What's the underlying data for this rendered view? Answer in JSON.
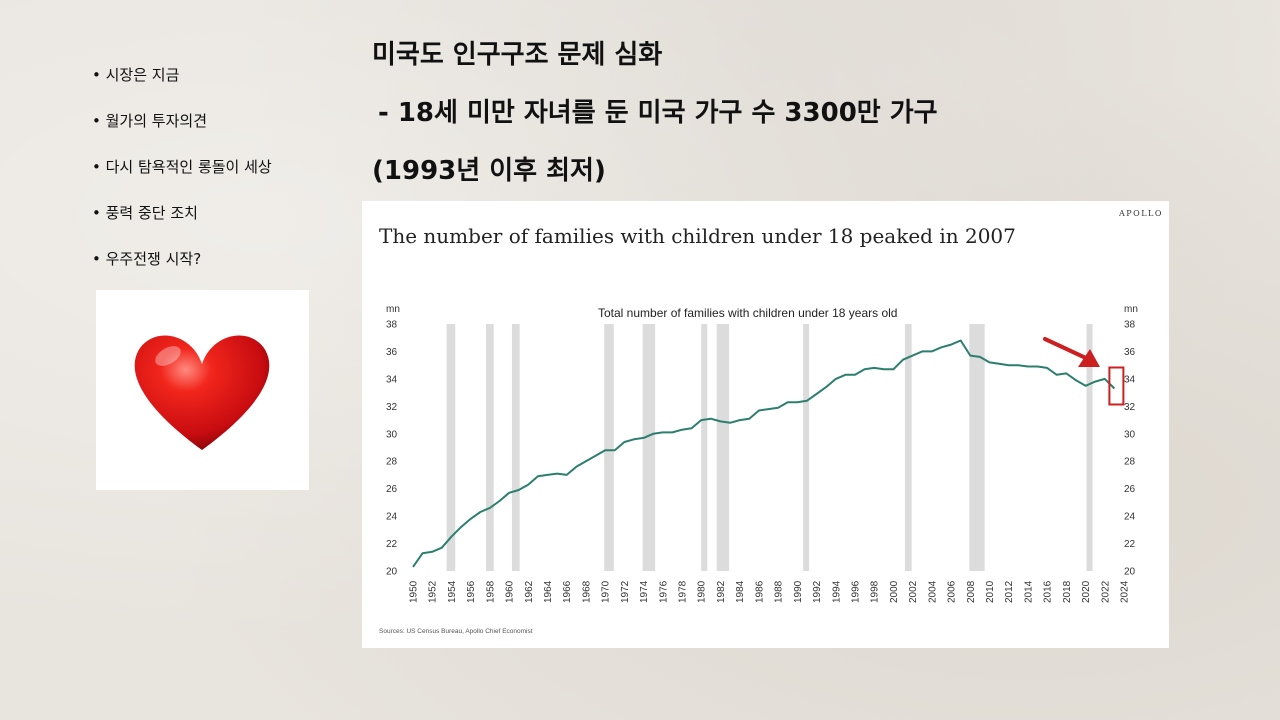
{
  "bullets": [
    "시장은 지금",
    "월가의 투자의견",
    "다시 탐욕적인 롱돌이 세상",
    "풍력 중단 조치",
    "우주전쟁 시작?"
  ],
  "headline": {
    "line1": "미국도 인구구조 문제 심화",
    "line2": "- 18세 미만 자녀를 둔 미국 가구 수 3300만 가구",
    "line3": "(1993년 이후 최저)"
  },
  "colors": {
    "line": "#2c7f6e",
    "recession": "#dcdcdc",
    "arrow": "#cc1f1f",
    "heart": "#e3101a"
  },
  "heart_icon": "heart-icon",
  "chart_data": {
    "type": "line",
    "title": "The number of  families with children under 18 peaked in 2007",
    "brand": "APOLLO",
    "subtitle": "Total number of families with children under 18 years old",
    "ylabel_left": "mn",
    "ylabel_right": "mn",
    "source": "Sources: US Census Bureau, Apollo Chief Economist",
    "ylim": [
      20,
      38
    ],
    "yticks": [
      20,
      22,
      24,
      26,
      28,
      30,
      32,
      34,
      36,
      38
    ],
    "xlim": [
      1950,
      2024
    ],
    "xticks": [
      1950,
      1952,
      1954,
      1956,
      1958,
      1960,
      1962,
      1964,
      1966,
      1968,
      1970,
      1972,
      1974,
      1976,
      1978,
      1980,
      1982,
      1984,
      1986,
      1988,
      1990,
      1992,
      1994,
      1996,
      1998,
      2000,
      2002,
      2004,
      2006,
      2008,
      2010,
      2012,
      2014,
      2016,
      2018,
      2020,
      2022,
      2024
    ],
    "recessions": [
      [
        1953.5,
        1954.4
      ],
      [
        1957.6,
        1958.4
      ],
      [
        1960.3,
        1961.1
      ],
      [
        1969.9,
        1970.9
      ],
      [
        1973.9,
        1975.2
      ],
      [
        1980.0,
        1980.6
      ],
      [
        1981.6,
        1982.9
      ],
      [
        1990.6,
        1991.2
      ],
      [
        2001.2,
        2001.9
      ],
      [
        2007.9,
        2009.5
      ],
      [
        2020.1,
        2020.5
      ]
    ],
    "series": [
      {
        "x": [
          1950,
          1951,
          1952,
          1953,
          1954,
          1955,
          1956,
          1957,
          1958,
          1959,
          1960,
          1961,
          1962,
          1963,
          1964,
          1965,
          1966,
          1967,
          1968,
          1969,
          1970,
          1971,
          1972,
          1973,
          1974,
          1975,
          1976,
          1977,
          1978,
          1979,
          1980,
          1981,
          1982,
          1983,
          1984,
          1985,
          1986,
          1987,
          1988,
          1989,
          1990,
          1991,
          1992,
          1993,
          1994,
          1995,
          1996,
          1997,
          1998,
          1999,
          2000,
          2001,
          2002,
          2003,
          2004,
          2005,
          2006,
          2007,
          2008,
          2009,
          2010,
          2011,
          2012,
          2013,
          2014,
          2015,
          2016,
          2017,
          2018,
          2019,
          2020,
          2021,
          2022,
          2023
        ],
        "values": [
          20.3,
          21.3,
          21.4,
          21.7,
          22.5,
          23.2,
          23.8,
          24.3,
          24.6,
          25.1,
          25.7,
          25.9,
          26.3,
          26.9,
          27.0,
          27.1,
          27.0,
          27.6,
          28.0,
          28.4,
          28.8,
          28.8,
          29.4,
          29.6,
          29.7,
          30.0,
          30.1,
          30.1,
          30.3,
          30.4,
          31.0,
          31.1,
          30.9,
          30.8,
          31.0,
          31.1,
          31.7,
          31.8,
          31.9,
          32.3,
          32.3,
          32.4,
          32.9,
          33.4,
          34.0,
          34.3,
          34.3,
          34.7,
          34.8,
          34.7,
          34.7,
          35.4,
          35.7,
          36.0,
          36.0,
          36.3,
          36.5,
          36.8,
          35.7,
          35.6,
          35.2,
          35.1,
          35.0,
          35.0,
          34.9,
          34.9,
          34.8,
          34.3,
          34.4,
          33.9,
          33.5,
          33.8,
          34.0,
          33.3
        ]
      }
    ],
    "highlight": {
      "x": 2023,
      "y": 33.3
    }
  }
}
